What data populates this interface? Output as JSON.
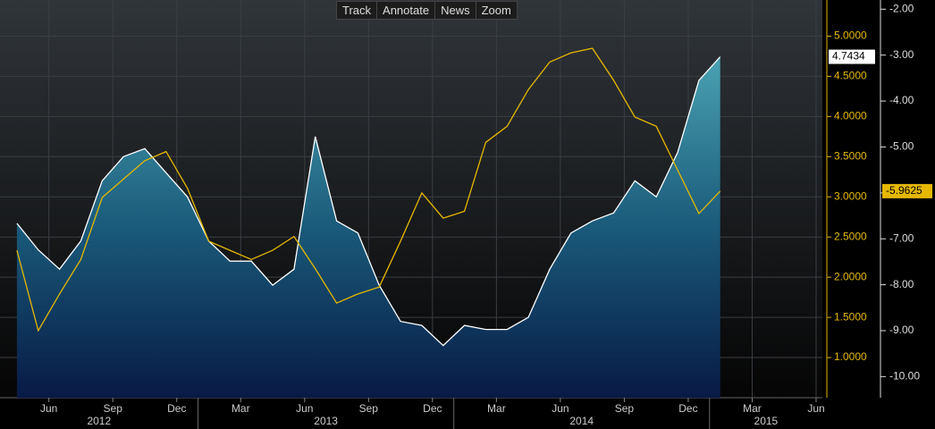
{
  "toolbar": [
    "Track",
    "Annotate",
    "News",
    "Zoom"
  ],
  "chart_data": {
    "type": "line",
    "grid": true,
    "x": [
      "2012-04",
      "2012-05",
      "2012-06",
      "2012-07",
      "2012-08",
      "2012-09",
      "2012-10",
      "2012-11",
      "2012-12",
      "2013-01",
      "2013-02",
      "2013-03",
      "2013-04",
      "2013-05",
      "2013-06",
      "2013-07",
      "2013-08",
      "2013-09",
      "2013-10",
      "2013-11",
      "2013-12",
      "2014-01",
      "2014-02",
      "2014-03",
      "2014-04",
      "2014-05",
      "2014-06",
      "2014-07",
      "2014-08",
      "2014-09",
      "2014-10",
      "2014-11",
      "2014-12",
      "2015-01"
    ],
    "xlim": [
      "2012-04",
      "2015-05"
    ],
    "xticks": [
      {
        "value": "2012-06",
        "label": "Jun"
      },
      {
        "value": "2012-09",
        "label": "Sep"
      },
      {
        "value": "2012-12",
        "label": "Dec"
      },
      {
        "value": "2013-03",
        "label": "Mar"
      },
      {
        "value": "2013-06",
        "label": "Jun"
      },
      {
        "value": "2013-09",
        "label": "Sep"
      },
      {
        "value": "2013-12",
        "label": "Dec"
      },
      {
        "value": "2014-03",
        "label": "Mar"
      },
      {
        "value": "2014-06",
        "label": "Jun"
      },
      {
        "value": "2014-09",
        "label": "Sep"
      },
      {
        "value": "2014-12",
        "label": "Dec"
      },
      {
        "value": "2015-03",
        "label": "Mar"
      },
      {
        "value": "2015-06",
        "label": "Jun"
      }
    ],
    "year_labels": [
      "2012",
      "2013",
      "2014",
      "2015"
    ],
    "ylim": [
      0.5,
      5.45
    ],
    "yticks": [
      {
        "value": 1,
        "label": "1.0000"
      },
      {
        "value": 1.5,
        "label": "1.5000"
      },
      {
        "value": 2,
        "label": "2.0000"
      },
      {
        "value": 2.5,
        "label": "2.5000"
      },
      {
        "value": 3,
        "label": "3.0000"
      },
      {
        "value": 3.5,
        "label": "3.5000"
      },
      {
        "value": 4,
        "label": "4.0000"
      },
      {
        "value": 4.5,
        "label": "4.5000"
      },
      {
        "value": 5,
        "label": "5.0000"
      }
    ],
    "y2lim": [
      -10.46,
      -1.8
    ],
    "y2ticks": [
      {
        "value": -2,
        "label": "-2.00"
      },
      {
        "value": -3,
        "label": "-3.00"
      },
      {
        "value": -4,
        "label": "-4.00"
      },
      {
        "value": -5,
        "label": "-5.00"
      },
      {
        "value": -6,
        "label": "-6.00"
      },
      {
        "value": -7,
        "label": "-7.00"
      },
      {
        "value": -8,
        "label": "-8.00"
      },
      {
        "value": -9,
        "label": "-9.00"
      },
      {
        "value": -10,
        "label": "-10.00"
      }
    ],
    "series": [
      {
        "color": "#ffffff",
        "values": [
          2.67,
          2.34,
          2.1,
          2.45,
          3.2,
          3.5,
          3.6,
          3.3,
          3.0,
          2.45,
          2.2,
          2.2,
          1.9,
          2.1,
          3.75,
          2.7,
          2.55,
          1.9,
          1.45,
          1.4,
          1.15,
          1.4,
          1.35,
          1.35,
          1.5,
          2.1,
          2.55,
          2.7,
          2.8,
          3.2,
          3.0,
          3.55,
          4.45,
          4.7434
        ]
      },
      {
        "color": "#e6b800",
        "axis": "y2",
        "values": [
          -7.25,
          -9.0,
          -8.2,
          -7.45,
          -6.1,
          -5.7,
          -5.3,
          -5.1,
          -5.9,
          -7.05,
          -7.25,
          -7.45,
          -7.25,
          -6.95,
          -7.65,
          -8.4,
          -8.2,
          -8.05,
          -7.05,
          -6.0,
          -6.55,
          -6.4,
          -4.9,
          -4.55,
          -3.75,
          -3.15,
          -2.95,
          -2.85,
          -3.55,
          -4.35,
          -4.55,
          -5.5,
          -6.45,
          -5.9625
        ]
      }
    ]
  }
}
